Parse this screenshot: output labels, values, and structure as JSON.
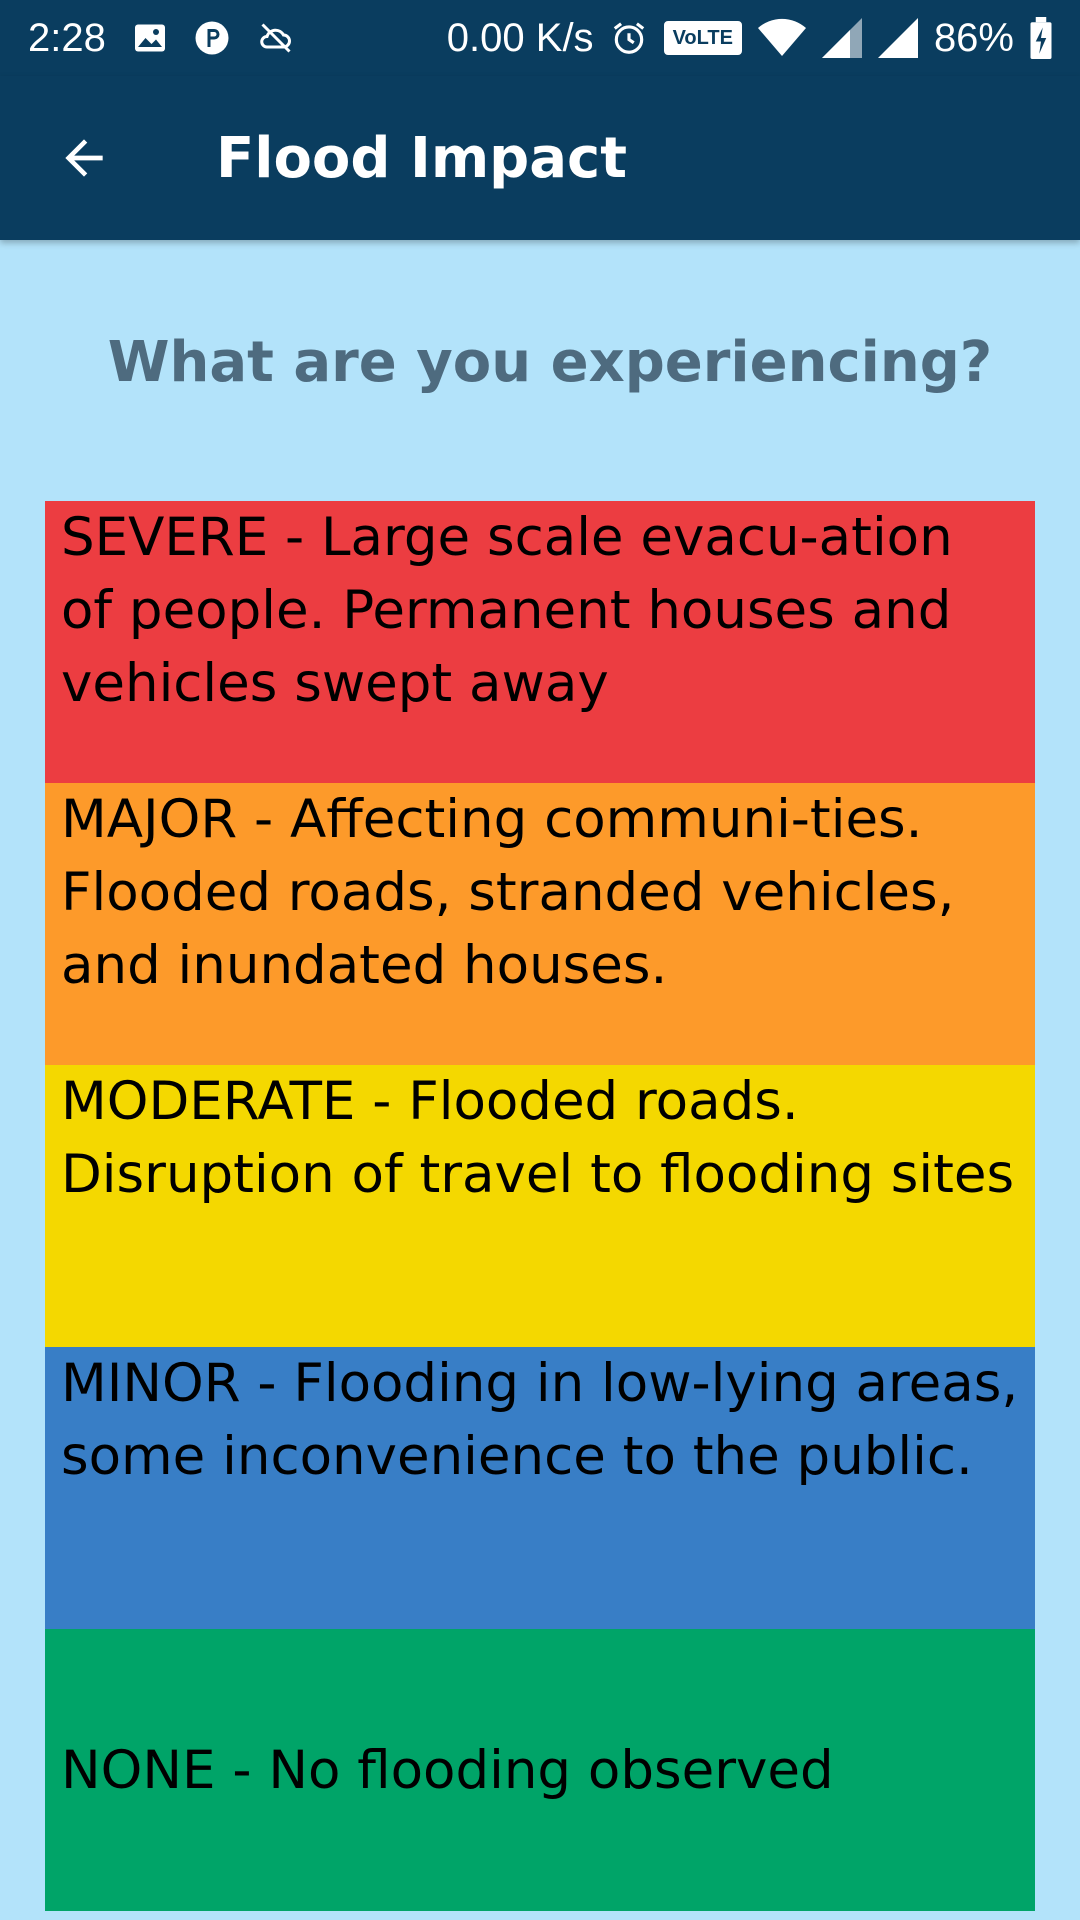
{
  "status_bar": {
    "time": "2:28",
    "net_speed": "0.00 K/s",
    "volte": "VoLTE",
    "battery": "86%"
  },
  "app_bar": {
    "title": "Flood Impact"
  },
  "question": "What are you experiencing?",
  "options": [
    {
      "text": " SEVERE - Large scale evacu-ation of people. Permanent houses and vehicles swept away",
      "color": "#ec3d41"
    },
    {
      "text": " MAJOR -  Affecting communi-ties. Flooded roads, stranded vehicles, and inundated houses.",
      "color": "#fd9a2a"
    },
    {
      "text": " MODERATE - Flooded roads. Disruption of travel to flooding sites",
      "color": "#f4d800"
    },
    {
      "text": " MINOR - Flooding in low-lying areas, some inconvenience to the public.",
      "color": "#387ec6"
    },
    {
      "text": " NONE - No flooding observed",
      "color": "#00a468"
    }
  ],
  "colors": {
    "app_bar": "#0a3d5f",
    "background": "#b3e3fa",
    "question_text": "#4e6b7f"
  }
}
